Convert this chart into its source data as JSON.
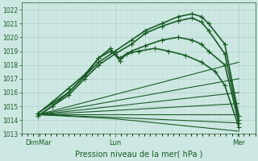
{
  "background_color": "#cde8e2",
  "plot_bg_color": "#cde8e2",
  "grid_major_color": "#a8c8c0",
  "grid_minor_color": "#b8d8d0",
  "line_color": "#1a5c28",
  "xlabel": "Pression niveau de la mer( hPa )",
  "xtick_labels": [
    "DimMar",
    "Lun",
    "Mer"
  ],
  "xtick_positions": [
    0.07,
    0.4,
    0.93
  ],
  "ylim": [
    1013.0,
    1022.5
  ],
  "yticks": [
    1013,
    1014,
    1015,
    1016,
    1017,
    1018,
    1019,
    1020,
    1021,
    1022
  ],
  "series": [
    {
      "x": [
        0.07,
        0.13,
        0.2,
        0.27,
        0.33,
        0.4,
        0.47,
        0.53,
        0.6,
        0.67,
        0.73,
        0.77,
        0.8,
        0.87,
        0.93
      ],
      "y": [
        1014.5,
        1015.2,
        1016.0,
        1017.2,
        1018.2,
        1019.0,
        1019.8,
        1020.5,
        1021.0,
        1021.5,
        1021.7,
        1021.5,
        1021.0,
        1019.5,
        1014.3
      ],
      "lw": 1.2,
      "marker": "+",
      "ms": 4
    },
    {
      "x": [
        0.07,
        0.13,
        0.2,
        0.27,
        0.33,
        0.4,
        0.47,
        0.53,
        0.6,
        0.67,
        0.73,
        0.77,
        0.8,
        0.87,
        0.93
      ],
      "y": [
        1014.3,
        1015.0,
        1015.8,
        1017.0,
        1018.0,
        1018.8,
        1019.5,
        1020.3,
        1020.8,
        1021.2,
        1021.4,
        1021.1,
        1020.5,
        1018.8,
        1014.0
      ],
      "lw": 1.2,
      "marker": "+",
      "ms": 4
    },
    {
      "x": [
        0.07,
        0.13,
        0.2,
        0.27,
        0.33,
        0.38,
        0.42,
        0.47,
        0.53,
        0.6,
        0.67,
        0.73,
        0.77,
        0.8,
        0.87,
        0.93
      ],
      "y": [
        1014.5,
        1015.3,
        1016.3,
        1017.3,
        1018.5,
        1019.0,
        1018.5,
        1019.0,
        1019.4,
        1019.8,
        1020.0,
        1019.8,
        1019.5,
        1019.0,
        1018.0,
        1013.8
      ],
      "lw": 1.2,
      "marker": "+",
      "ms": 4
    },
    {
      "x": [
        0.07,
        0.13,
        0.2,
        0.27,
        0.33,
        0.38,
        0.42,
        0.45,
        0.5,
        0.57,
        0.63,
        0.7,
        0.77,
        0.83,
        0.87,
        0.93
      ],
      "y": [
        1014.3,
        1015.0,
        1016.0,
        1017.2,
        1018.5,
        1019.2,
        1018.3,
        1018.8,
        1019.0,
        1019.2,
        1019.0,
        1018.7,
        1018.2,
        1017.5,
        1016.5,
        1013.5
      ],
      "lw": 1.2,
      "marker": "+",
      "ms": 4
    },
    {
      "x": [
        0.07,
        0.93
      ],
      "y": [
        1014.4,
        1018.2
      ],
      "lw": 0.8,
      "marker": null,
      "ms": 0
    },
    {
      "x": [
        0.07,
        0.93
      ],
      "y": [
        1014.4,
        1017.0
      ],
      "lw": 0.8,
      "marker": null,
      "ms": 0
    },
    {
      "x": [
        0.07,
        0.93
      ],
      "y": [
        1014.4,
        1016.0
      ],
      "lw": 0.8,
      "marker": null,
      "ms": 0
    },
    {
      "x": [
        0.07,
        0.93
      ],
      "y": [
        1014.4,
        1015.2
      ],
      "lw": 0.8,
      "marker": null,
      "ms": 0
    },
    {
      "x": [
        0.07,
        0.93
      ],
      "y": [
        1014.4,
        1014.4
      ],
      "lw": 0.8,
      "marker": null,
      "ms": 0
    },
    {
      "x": [
        0.07,
        0.4,
        0.93
      ],
      "y": [
        1014.4,
        1014.2,
        1013.8
      ],
      "lw": 0.8,
      "marker": null,
      "ms": 0
    },
    {
      "x": [
        0.07,
        0.4,
        0.93
      ],
      "y": [
        1014.4,
        1014.1,
        1013.2
      ],
      "lw": 0.8,
      "marker": null,
      "ms": 0
    }
  ]
}
